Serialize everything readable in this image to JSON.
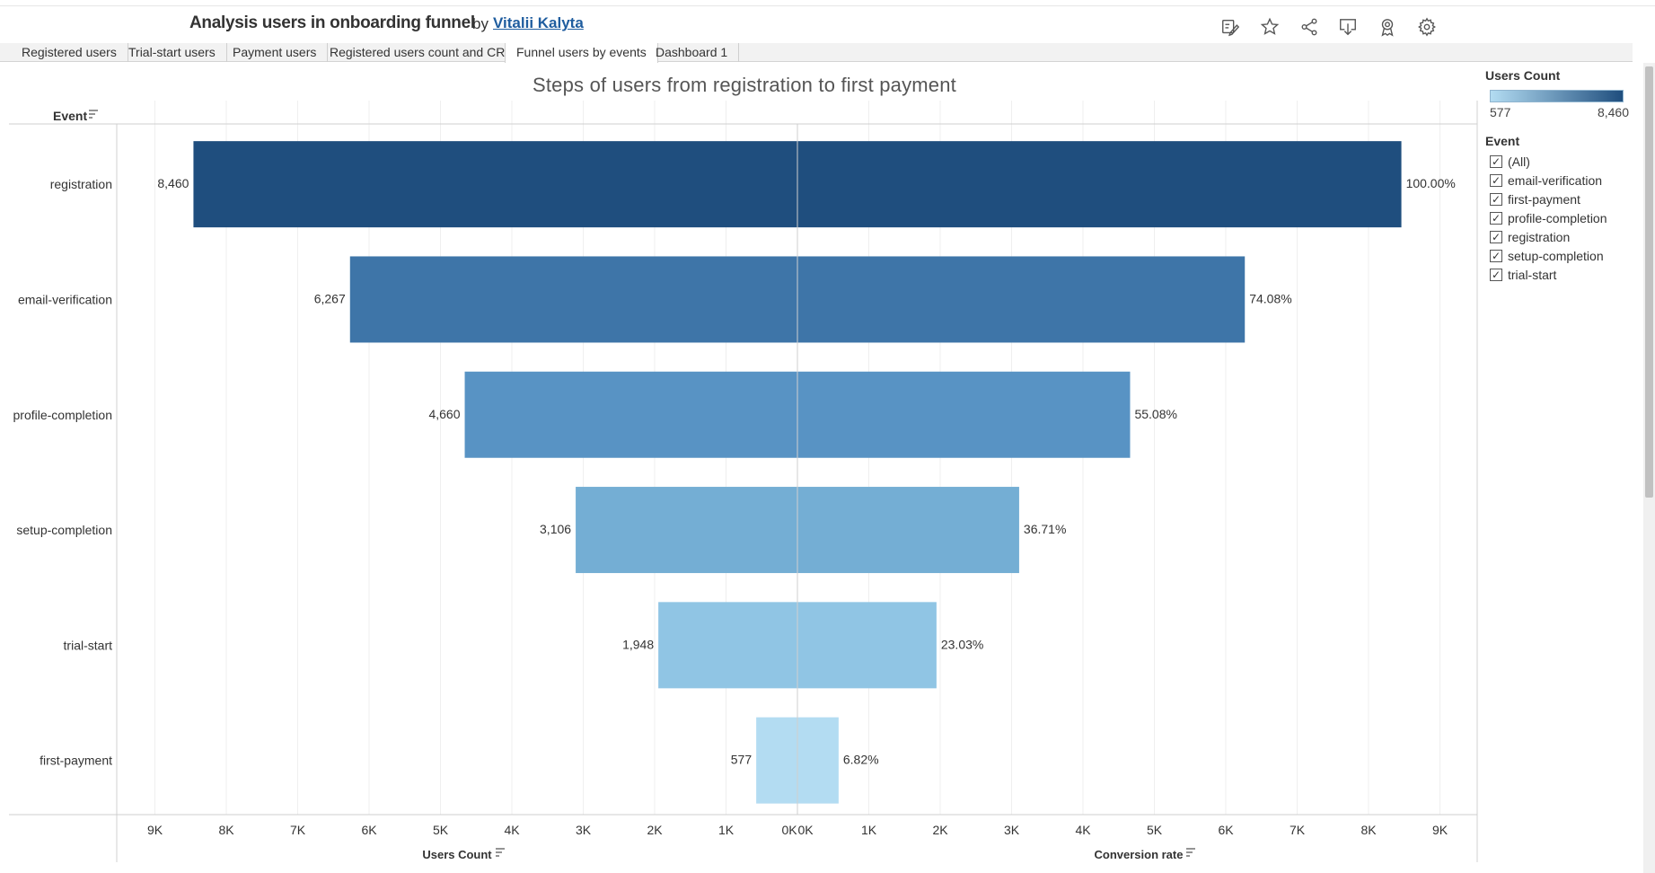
{
  "header": {
    "title": "Analysis users in onboarding funnel",
    "by": "by",
    "author": "Vitalii Kalyta",
    "toolbar_icons": [
      "edit-pencil-icon",
      "star-icon",
      "share-icon",
      "download-icon",
      "award-icon",
      "gear-icon"
    ]
  },
  "tabs": [
    {
      "label": "Registered users",
      "active": false
    },
    {
      "label": "Trial-start users",
      "active": false
    },
    {
      "label": "Payment users",
      "active": false
    },
    {
      "label": "Registered users count and CR",
      "active": false
    },
    {
      "label": "Funnel users by events",
      "active": true
    },
    {
      "label": "Dashboard 1",
      "active": false
    }
  ],
  "legend": {
    "color_title": "Users Count",
    "min_label": "577",
    "max_label": "8,460",
    "min_color": "#b3dcf2",
    "max_color": "#1f4e7e",
    "filter_title": "Event",
    "filter_items": [
      "(All)",
      "email-verification",
      "first-payment",
      "profile-completion",
      "registration",
      "setup-completion",
      "trial-start"
    ]
  },
  "chart_data": {
    "type": "bar",
    "orientation": "horizontal-diverging",
    "title": "Steps of users from registration to first payment",
    "row_header": "Event",
    "categories": [
      "registration",
      "email-verification",
      "profile-completion",
      "setup-completion",
      "trial-start",
      "first-payment"
    ],
    "series": [
      {
        "name": "Users Count",
        "values": [
          8460,
          6267,
          4660,
          3106,
          1948,
          577
        ],
        "labels": [
          "8,460",
          "6,267",
          "4,660",
          "3,106",
          "1,948",
          "577"
        ]
      },
      {
        "name": "Conversion rate",
        "values": [
          8460,
          6267,
          4660,
          3106,
          1948,
          577
        ],
        "labels": [
          "100.00%",
          "74.08%",
          "55.08%",
          "36.71%",
          "23.03%",
          "6.82%"
        ]
      }
    ],
    "bar_colors": [
      "#1f4e7e",
      "#3e75a8",
      "#5893c4",
      "#74aed4",
      "#90c5e4",
      "#b3dcf2"
    ],
    "left_axis": {
      "label": "Users Count",
      "ticks": [
        "9K",
        "8K",
        "7K",
        "6K",
        "5K",
        "4K",
        "3K",
        "2K",
        "1K",
        "0K"
      ],
      "range": [
        9500,
        0
      ]
    },
    "right_axis": {
      "label": "Conversion rate",
      "ticks": [
        "0K",
        "1K",
        "2K",
        "3K",
        "4K",
        "5K",
        "6K",
        "7K",
        "8K",
        "9K"
      ],
      "range": [
        0,
        9500
      ]
    },
    "grid": true
  }
}
